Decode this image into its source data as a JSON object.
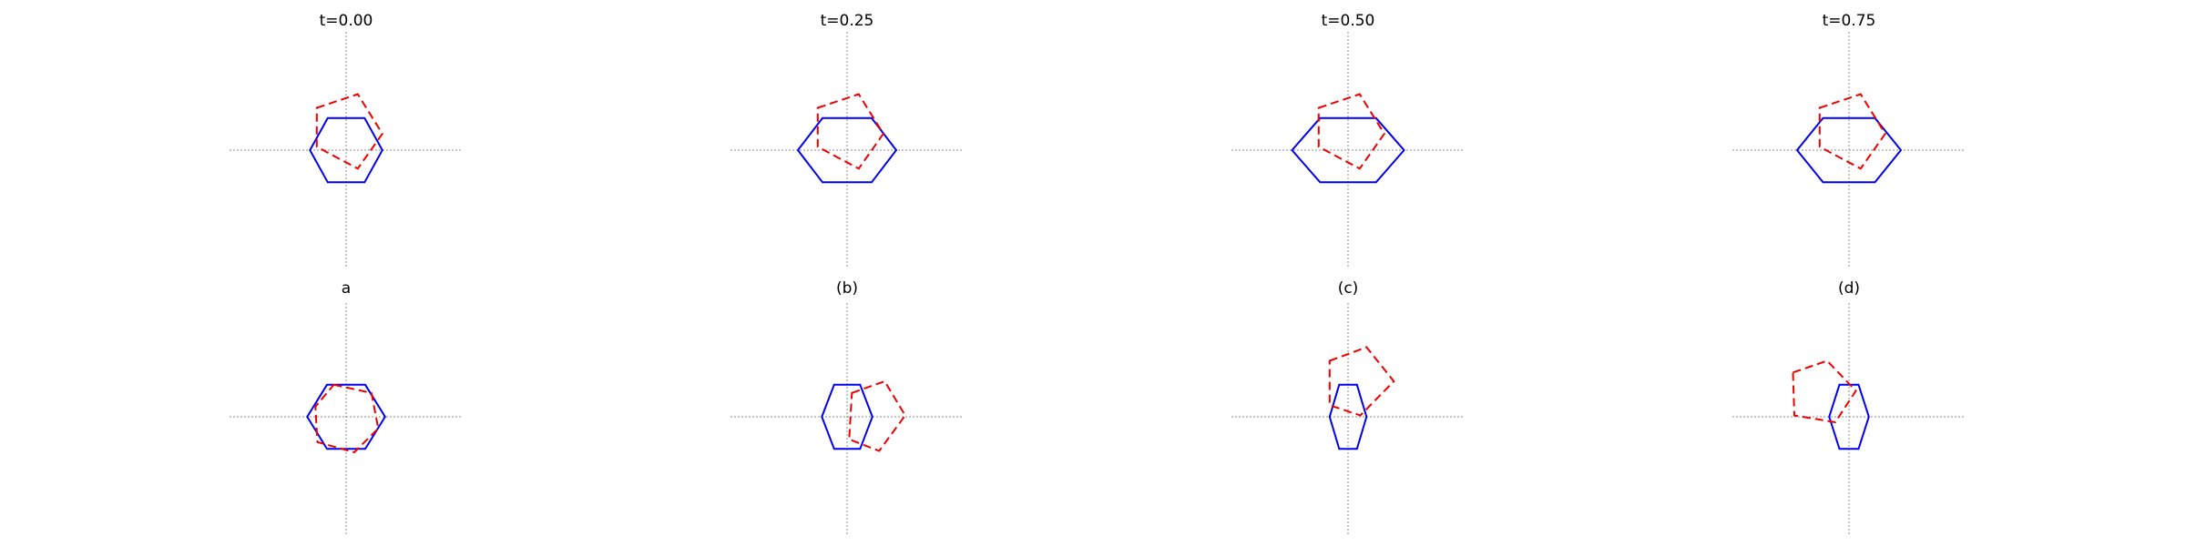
{
  "colors": {
    "solid": "#0000ee",
    "dashed": "#ee0000",
    "axis": "#8c8c8c"
  },
  "panels": [
    {
      "title": "t=0.00",
      "solid": [
        [
          -0.53,
          0
        ],
        [
          -0.27,
          0.47
        ],
        [
          0.27,
          0.47
        ],
        [
          0.53,
          0
        ],
        [
          0.27,
          -0.47
        ],
        [
          -0.27,
          -0.47
        ]
      ],
      "dashed": [
        [
          -0.43,
          0.62
        ],
        [
          0.17,
          0.82
        ],
        [
          0.53,
          0.24
        ],
        [
          0.17,
          -0.27
        ],
        [
          -0.43,
          0.05
        ]
      ]
    },
    {
      "title": "t=0.25",
      "solid": [
        [
          -0.72,
          0
        ],
        [
          -0.36,
          0.47
        ],
        [
          0.36,
          0.47
        ],
        [
          0.72,
          0
        ],
        [
          0.36,
          -0.47
        ],
        [
          -0.36,
          -0.47
        ]
      ],
      "dashed": [
        [
          -0.43,
          0.62
        ],
        [
          0.17,
          0.82
        ],
        [
          0.53,
          0.24
        ],
        [
          0.17,
          -0.27
        ],
        [
          -0.43,
          0.05
        ]
      ]
    },
    {
      "title": "t=0.50",
      "solid": [
        [
          -0.82,
          0
        ],
        [
          -0.41,
          0.47
        ],
        [
          0.41,
          0.47
        ],
        [
          0.82,
          0
        ],
        [
          0.41,
          -0.47
        ],
        [
          -0.41,
          -0.47
        ]
      ],
      "dashed": [
        [
          -0.43,
          0.62
        ],
        [
          0.17,
          0.82
        ],
        [
          0.53,
          0.24
        ],
        [
          0.17,
          -0.27
        ],
        [
          -0.43,
          0.05
        ]
      ]
    },
    {
      "title": "t=0.75",
      "solid": [
        [
          -0.76,
          0
        ],
        [
          -0.38,
          0.47
        ],
        [
          0.38,
          0.47
        ],
        [
          0.76,
          0
        ],
        [
          0.38,
          -0.47
        ],
        [
          -0.38,
          -0.47
        ]
      ],
      "dashed": [
        [
          -0.43,
          0.62
        ],
        [
          0.17,
          0.82
        ],
        [
          0.53,
          0.24
        ],
        [
          0.17,
          -0.27
        ],
        [
          -0.43,
          0.05
        ]
      ]
    },
    {
      "title": "a",
      "solid": [
        [
          -0.57,
          0
        ],
        [
          -0.28,
          0.47
        ],
        [
          0.28,
          0.47
        ],
        [
          0.57,
          0
        ],
        [
          0.28,
          -0.47
        ],
        [
          -0.28,
          -0.47
        ]
      ],
      "dashed": [
        [
          -0.18,
          0.47
        ],
        [
          0.37,
          0.35
        ],
        [
          0.47,
          -0.17
        ],
        [
          0.12,
          -0.52
        ],
        [
          -0.42,
          -0.37
        ],
        [
          -0.45,
          0.15
        ]
      ]
    },
    {
      "title": "(b)",
      "solid": [
        [
          -0.37,
          0
        ],
        [
          -0.19,
          0.47
        ],
        [
          0.19,
          0.47
        ],
        [
          0.37,
          0
        ],
        [
          0.19,
          -0.47
        ],
        [
          -0.19,
          -0.47
        ]
      ],
      "dashed": [
        [
          0.07,
          0.35
        ],
        [
          0.55,
          0.52
        ],
        [
          0.85,
          0.02
        ],
        [
          0.47,
          -0.5
        ],
        [
          0.03,
          -0.33
        ]
      ]
    },
    {
      "title": "(c)",
      "solid": [
        [
          -0.27,
          0
        ],
        [
          -0.13,
          0.47
        ],
        [
          0.13,
          0.47
        ],
        [
          0.27,
          0
        ],
        [
          0.13,
          -0.47
        ],
        [
          -0.13,
          -0.47
        ]
      ],
      "dashed": [
        [
          -0.27,
          0.82
        ],
        [
          0.27,
          1.02
        ],
        [
          0.67,
          0.52
        ],
        [
          0.18,
          0.02
        ],
        [
          -0.27,
          0.17
        ]
      ]
    },
    {
      "title": "(d)",
      "solid": [
        [
          -0.29,
          0
        ],
        [
          -0.14,
          0.47
        ],
        [
          0.14,
          0.47
        ],
        [
          0.29,
          0
        ],
        [
          0.14,
          -0.47
        ],
        [
          -0.14,
          -0.47
        ]
      ],
      "dashed": [
        [
          -0.82,
          0.65
        ],
        [
          -0.32,
          0.82
        ],
        [
          0.1,
          0.38
        ],
        [
          -0.2,
          -0.08
        ],
        [
          -0.8,
          0.02
        ]
      ]
    }
  ]
}
